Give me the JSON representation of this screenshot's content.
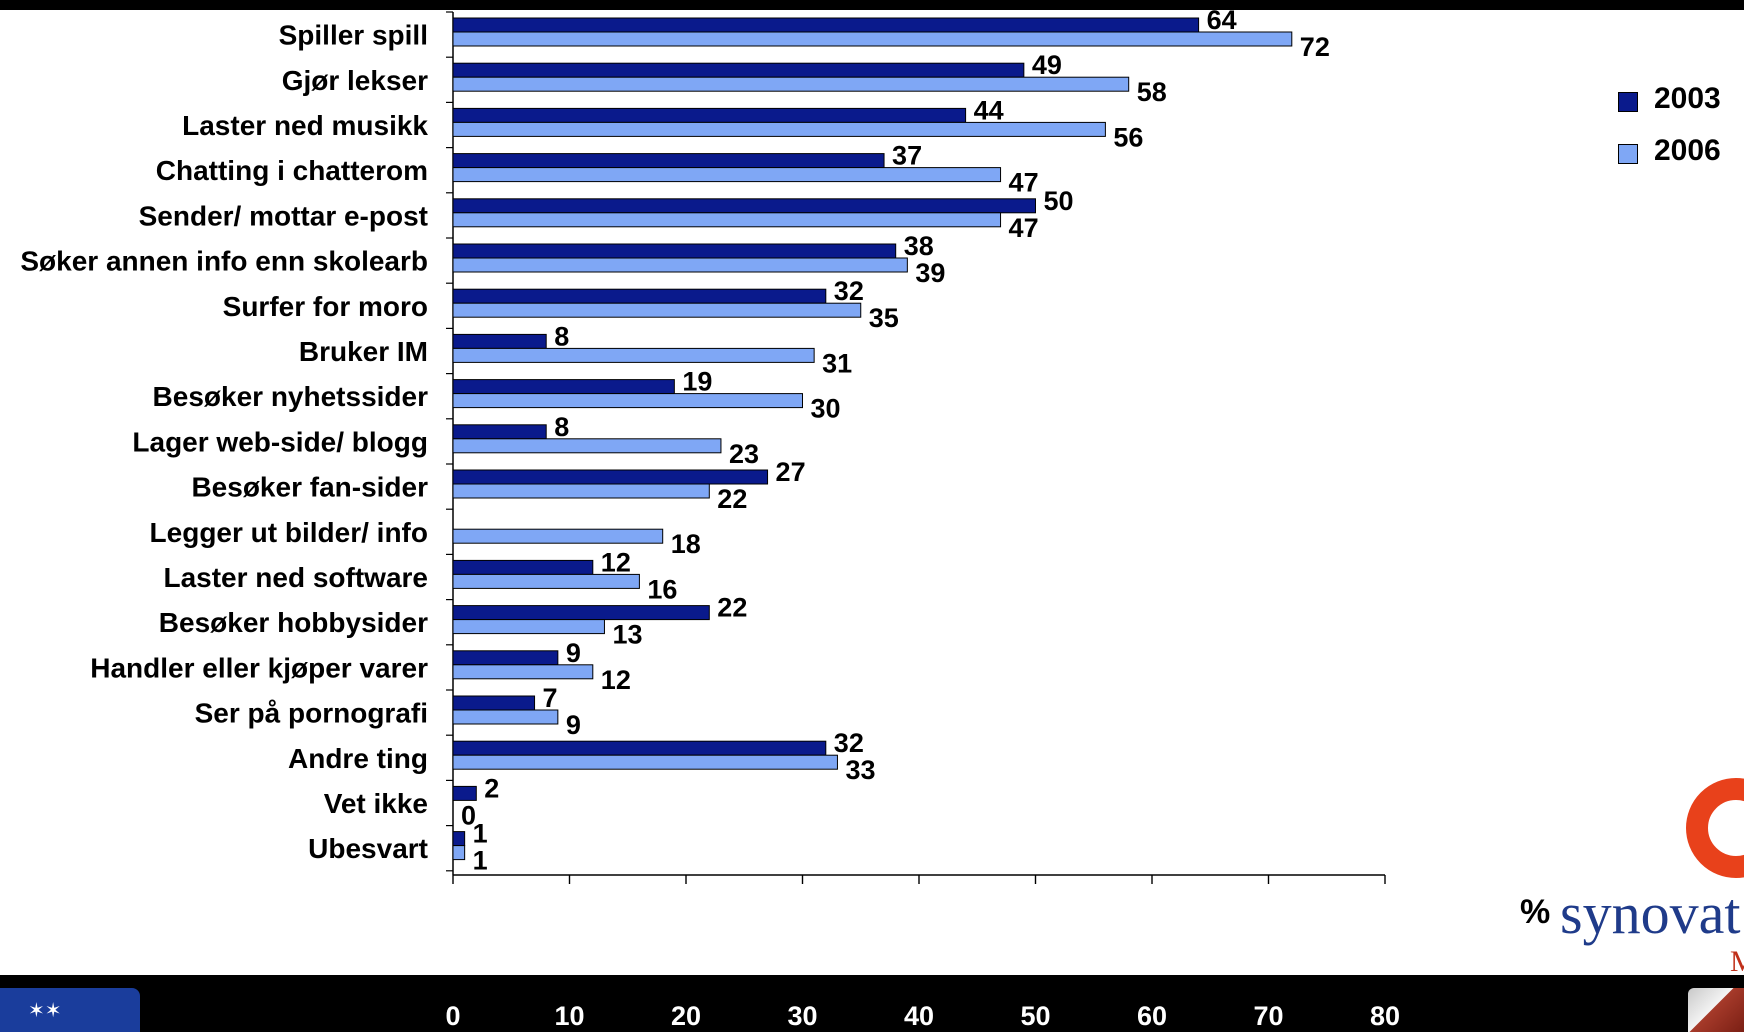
{
  "chart_data": {
    "type": "bar",
    "orientation": "horizontal",
    "categories": [
      "Spiller spill",
      "Gjør lekser",
      "Laster ned musikk",
      "Chatting i chatterom",
      "Sender/ mottar e-post",
      "Søker annen info enn skolearb",
      "Surfer for moro",
      "Bruker IM",
      "Besøker nyhetssider",
      "Lager web-side/ blogg",
      "Besøker fan-sider",
      "Legger ut bilder/ info",
      "Laster ned software",
      "Besøker hobbysider",
      "Handler eller kjøper varer",
      "Ser på pornografi",
      "Andre ting",
      "Vet ikke",
      "Ubesvart"
    ],
    "series": [
      {
        "name": "2003",
        "color": "#0a1a8c",
        "values": [
          64,
          49,
          44,
          37,
          50,
          38,
          32,
          8,
          19,
          8,
          27,
          null,
          12,
          22,
          9,
          7,
          32,
          2,
          1
        ]
      },
      {
        "name": "2006",
        "color": "#7fa7f5",
        "values": [
          72,
          58,
          56,
          47,
          47,
          39,
          35,
          31,
          30,
          23,
          22,
          18,
          16,
          13,
          12,
          9,
          33,
          0,
          1
        ]
      }
    ],
    "xlim": [
      0,
      80
    ],
    "xticks": [
      "0",
      "10",
      "20",
      "30",
      "40",
      "50",
      "60",
      "70",
      "80"
    ],
    "legend_position": "top-right",
    "grid": false,
    "data_labels": true
  },
  "legend": {
    "items": [
      {
        "label": "2003",
        "color": "#0a1a8c"
      },
      {
        "label": "2006",
        "color": "#7fa7f5"
      }
    ]
  },
  "unit_symbol": "%",
  "logos": {
    "brand_text": "synovat",
    "brand_sub": "M"
  }
}
